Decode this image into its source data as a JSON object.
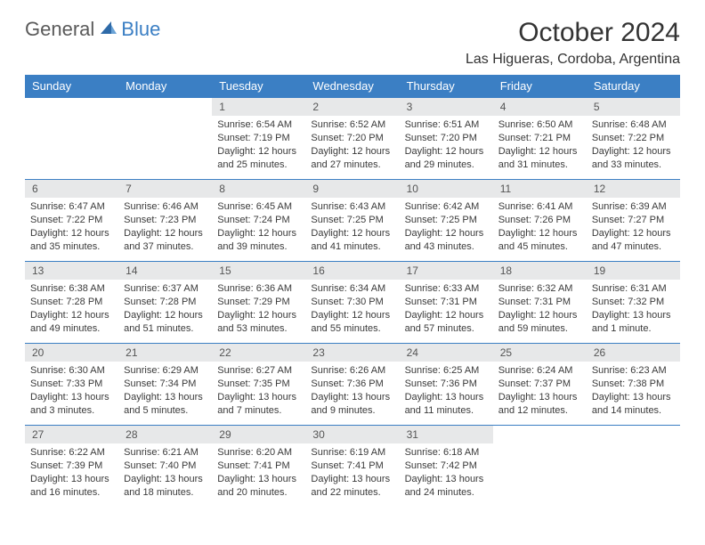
{
  "brand": {
    "part1": "General",
    "part2": "Blue"
  },
  "header": {
    "title": "October 2024",
    "location": "Las Higueras, Cordoba, Argentina"
  },
  "colors": {
    "accent": "#3b7fc4",
    "header_row_bg": "#3b7fc4",
    "daynum_bg": "#e7e8e9",
    "text": "#333333"
  },
  "weekdays": [
    "Sunday",
    "Monday",
    "Tuesday",
    "Wednesday",
    "Thursday",
    "Friday",
    "Saturday"
  ],
  "weeks": [
    [
      null,
      null,
      {
        "n": "1",
        "sr": "Sunrise: 6:54 AM",
        "ss": "Sunset: 7:19 PM",
        "dl": "Daylight: 12 hours and 25 minutes."
      },
      {
        "n": "2",
        "sr": "Sunrise: 6:52 AM",
        "ss": "Sunset: 7:20 PM",
        "dl": "Daylight: 12 hours and 27 minutes."
      },
      {
        "n": "3",
        "sr": "Sunrise: 6:51 AM",
        "ss": "Sunset: 7:20 PM",
        "dl": "Daylight: 12 hours and 29 minutes."
      },
      {
        "n": "4",
        "sr": "Sunrise: 6:50 AM",
        "ss": "Sunset: 7:21 PM",
        "dl": "Daylight: 12 hours and 31 minutes."
      },
      {
        "n": "5",
        "sr": "Sunrise: 6:48 AM",
        "ss": "Sunset: 7:22 PM",
        "dl": "Daylight: 12 hours and 33 minutes."
      }
    ],
    [
      {
        "n": "6",
        "sr": "Sunrise: 6:47 AM",
        "ss": "Sunset: 7:22 PM",
        "dl": "Daylight: 12 hours and 35 minutes."
      },
      {
        "n": "7",
        "sr": "Sunrise: 6:46 AM",
        "ss": "Sunset: 7:23 PM",
        "dl": "Daylight: 12 hours and 37 minutes."
      },
      {
        "n": "8",
        "sr": "Sunrise: 6:45 AM",
        "ss": "Sunset: 7:24 PM",
        "dl": "Daylight: 12 hours and 39 minutes."
      },
      {
        "n": "9",
        "sr": "Sunrise: 6:43 AM",
        "ss": "Sunset: 7:25 PM",
        "dl": "Daylight: 12 hours and 41 minutes."
      },
      {
        "n": "10",
        "sr": "Sunrise: 6:42 AM",
        "ss": "Sunset: 7:25 PM",
        "dl": "Daylight: 12 hours and 43 minutes."
      },
      {
        "n": "11",
        "sr": "Sunrise: 6:41 AM",
        "ss": "Sunset: 7:26 PM",
        "dl": "Daylight: 12 hours and 45 minutes."
      },
      {
        "n": "12",
        "sr": "Sunrise: 6:39 AM",
        "ss": "Sunset: 7:27 PM",
        "dl": "Daylight: 12 hours and 47 minutes."
      }
    ],
    [
      {
        "n": "13",
        "sr": "Sunrise: 6:38 AM",
        "ss": "Sunset: 7:28 PM",
        "dl": "Daylight: 12 hours and 49 minutes."
      },
      {
        "n": "14",
        "sr": "Sunrise: 6:37 AM",
        "ss": "Sunset: 7:28 PM",
        "dl": "Daylight: 12 hours and 51 minutes."
      },
      {
        "n": "15",
        "sr": "Sunrise: 6:36 AM",
        "ss": "Sunset: 7:29 PM",
        "dl": "Daylight: 12 hours and 53 minutes."
      },
      {
        "n": "16",
        "sr": "Sunrise: 6:34 AM",
        "ss": "Sunset: 7:30 PM",
        "dl": "Daylight: 12 hours and 55 minutes."
      },
      {
        "n": "17",
        "sr": "Sunrise: 6:33 AM",
        "ss": "Sunset: 7:31 PM",
        "dl": "Daylight: 12 hours and 57 minutes."
      },
      {
        "n": "18",
        "sr": "Sunrise: 6:32 AM",
        "ss": "Sunset: 7:31 PM",
        "dl": "Daylight: 12 hours and 59 minutes."
      },
      {
        "n": "19",
        "sr": "Sunrise: 6:31 AM",
        "ss": "Sunset: 7:32 PM",
        "dl": "Daylight: 13 hours and 1 minute."
      }
    ],
    [
      {
        "n": "20",
        "sr": "Sunrise: 6:30 AM",
        "ss": "Sunset: 7:33 PM",
        "dl": "Daylight: 13 hours and 3 minutes."
      },
      {
        "n": "21",
        "sr": "Sunrise: 6:29 AM",
        "ss": "Sunset: 7:34 PM",
        "dl": "Daylight: 13 hours and 5 minutes."
      },
      {
        "n": "22",
        "sr": "Sunrise: 6:27 AM",
        "ss": "Sunset: 7:35 PM",
        "dl": "Daylight: 13 hours and 7 minutes."
      },
      {
        "n": "23",
        "sr": "Sunrise: 6:26 AM",
        "ss": "Sunset: 7:36 PM",
        "dl": "Daylight: 13 hours and 9 minutes."
      },
      {
        "n": "24",
        "sr": "Sunrise: 6:25 AM",
        "ss": "Sunset: 7:36 PM",
        "dl": "Daylight: 13 hours and 11 minutes."
      },
      {
        "n": "25",
        "sr": "Sunrise: 6:24 AM",
        "ss": "Sunset: 7:37 PM",
        "dl": "Daylight: 13 hours and 12 minutes."
      },
      {
        "n": "26",
        "sr": "Sunrise: 6:23 AM",
        "ss": "Sunset: 7:38 PM",
        "dl": "Daylight: 13 hours and 14 minutes."
      }
    ],
    [
      {
        "n": "27",
        "sr": "Sunrise: 6:22 AM",
        "ss": "Sunset: 7:39 PM",
        "dl": "Daylight: 13 hours and 16 minutes."
      },
      {
        "n": "28",
        "sr": "Sunrise: 6:21 AM",
        "ss": "Sunset: 7:40 PM",
        "dl": "Daylight: 13 hours and 18 minutes."
      },
      {
        "n": "29",
        "sr": "Sunrise: 6:20 AM",
        "ss": "Sunset: 7:41 PM",
        "dl": "Daylight: 13 hours and 20 minutes."
      },
      {
        "n": "30",
        "sr": "Sunrise: 6:19 AM",
        "ss": "Sunset: 7:41 PM",
        "dl": "Daylight: 13 hours and 22 minutes."
      },
      {
        "n": "31",
        "sr": "Sunrise: 6:18 AM",
        "ss": "Sunset: 7:42 PM",
        "dl": "Daylight: 13 hours and 24 minutes."
      },
      null,
      null
    ]
  ]
}
